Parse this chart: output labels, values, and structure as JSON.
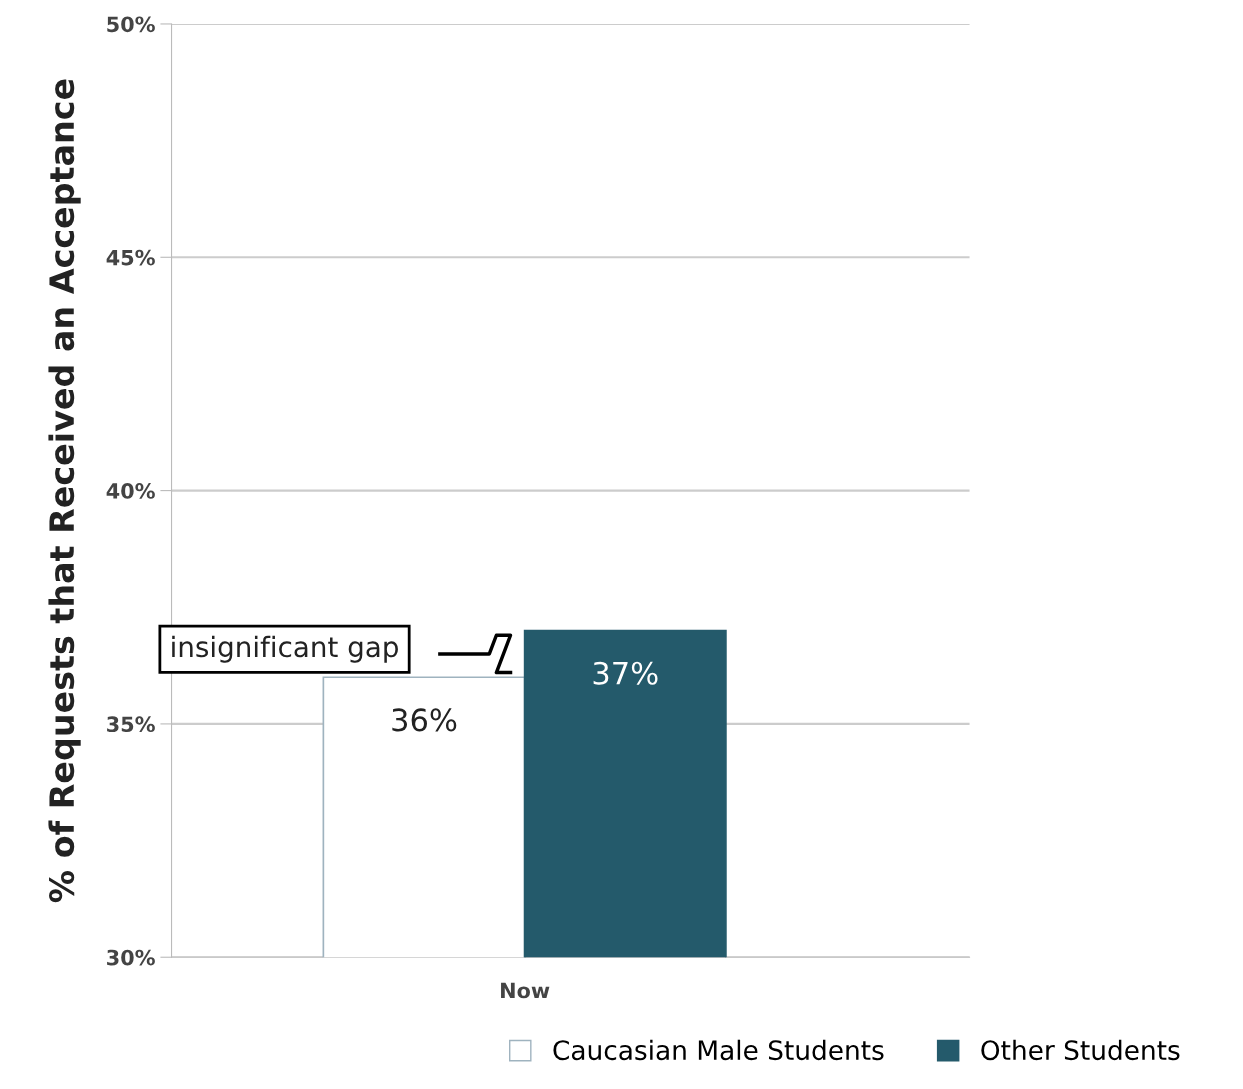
{
  "chart_data": {
    "type": "bar",
    "ylabel": "% of Requests that Received an Acceptance",
    "categories": [
      "Now"
    ],
    "series": [
      {
        "name": "Caucasian Male Students",
        "color": "#ffffff",
        "values": [
          36
        ],
        "value_labels": [
          "36%"
        ]
      },
      {
        "name": "Other Students",
        "color": "#245a6b",
        "values": [
          37
        ],
        "value_labels": [
          "37%"
        ]
      }
    ],
    "ylim": [
      30,
      50
    ],
    "yticks": [
      {
        "value": 30,
        "label": "30%"
      },
      {
        "value": 35,
        "label": "35%"
      },
      {
        "value": 40,
        "label": "40%"
      },
      {
        "value": 45,
        "label": "45%"
      },
      {
        "value": 50,
        "label": "50%"
      }
    ],
    "grid": "y",
    "legend": "bottom",
    "annotations": [
      "insignificant gap"
    ]
  }
}
